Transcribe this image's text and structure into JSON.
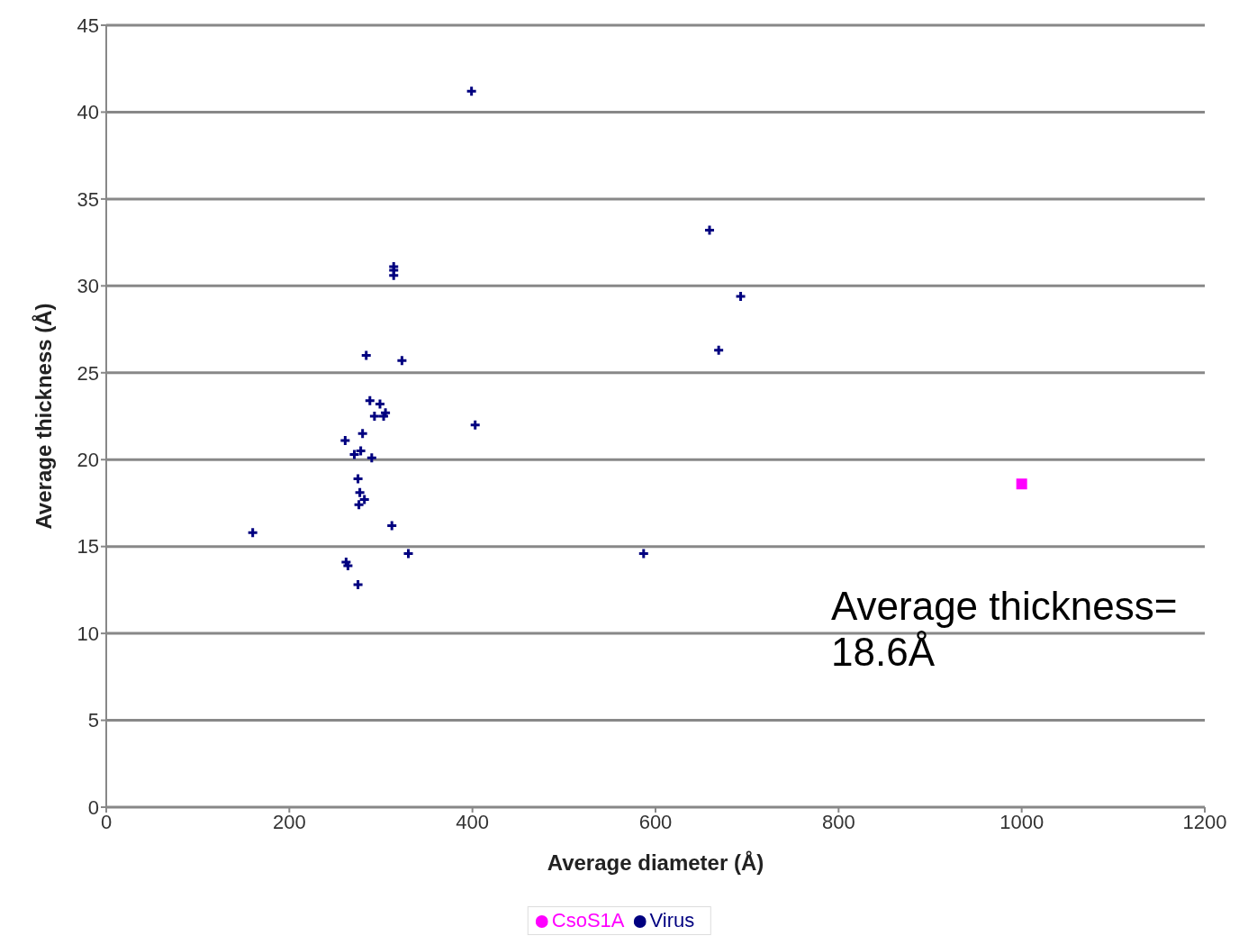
{
  "chart_data": {
    "type": "scatter",
    "xlabel": "Average diameter (Å)",
    "ylabel": "Average thickness (Å)",
    "xlim": [
      0,
      1200
    ],
    "xticks": [
      0,
      200,
      400,
      600,
      800,
      1000,
      1200
    ],
    "ylim": [
      0,
      45
    ],
    "yticks": [
      0,
      5,
      10,
      15,
      20,
      25,
      30,
      35,
      40,
      45
    ],
    "grid": "y",
    "legend": "bottom",
    "annotations": [
      "Average thickness= 18.6Å"
    ],
    "series": [
      {
        "name": "Virus",
        "color": "#000080",
        "marker": "cross",
        "x": [
          399,
          659,
          693,
          669,
          587,
          403,
          314,
          314,
          314,
          323,
          284,
          160,
          261,
          280,
          288,
          299,
          303,
          293,
          305,
          278,
          271,
          290,
          275,
          277,
          282,
          276,
          312,
          330,
          262,
          264,
          275
        ],
        "values": [
          41.2,
          33.2,
          29.4,
          26.3,
          14.6,
          22.0,
          31.1,
          30.6,
          30.9,
          25.7,
          26.0,
          15.8,
          21.1,
          21.5,
          23.4,
          23.2,
          22.5,
          22.5,
          22.7,
          20.5,
          20.3,
          20.1,
          18.9,
          18.1,
          17.7,
          17.4,
          16.2,
          14.6,
          14.1,
          13.9,
          12.8
        ]
      },
      {
        "name": "CsoS1A",
        "color": "#ff00ff",
        "marker": "square",
        "x": [
          1000
        ],
        "values": [
          18.6
        ]
      }
    ]
  }
}
